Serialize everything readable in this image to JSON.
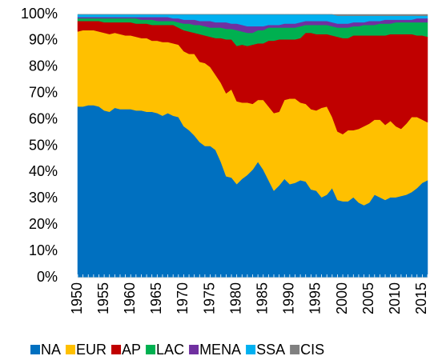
{
  "chart_data": {
    "type": "stacked-area",
    "x": [
      1950,
      1951,
      1952,
      1953,
      1954,
      1955,
      1956,
      1957,
      1958,
      1959,
      1960,
      1961,
      1962,
      1963,
      1964,
      1965,
      1966,
      1967,
      1968,
      1969,
      1970,
      1971,
      1972,
      1973,
      1974,
      1975,
      1976,
      1977,
      1978,
      1979,
      1980,
      1981,
      1982,
      1983,
      1984,
      1985,
      1986,
      1987,
      1988,
      1989,
      1990,
      1991,
      1992,
      1993,
      1994,
      1995,
      1996,
      1997,
      1998,
      1999,
      2000,
      2001,
      2002,
      2003,
      2004,
      2005,
      2006,
      2007,
      2008,
      2009,
      2010,
      2011,
      2012,
      2013,
      2014,
      2015,
      2016
    ],
    "xlim": [
      1950,
      2016
    ],
    "xticks": [
      1950,
      1955,
      1960,
      1965,
      1970,
      1975,
      1980,
      1985,
      1990,
      1995,
      2000,
      2005,
      2010,
      2015
    ],
    "ylim": [
      0,
      100
    ],
    "yticks": [
      {
        "value": 0,
        "label": "0%"
      },
      {
        "value": 10,
        "label": "10%"
      },
      {
        "value": 20,
        "label": "20%"
      },
      {
        "value": 30,
        "label": "30%"
      },
      {
        "value": 40,
        "label": "40%"
      },
      {
        "value": 50,
        "label": "50%"
      },
      {
        "value": 60,
        "label": "60%"
      },
      {
        "value": 70,
        "label": "70%"
      },
      {
        "value": 80,
        "label": "80%"
      },
      {
        "value": 90,
        "label": "90%"
      },
      {
        "value": 100,
        "label": "100%"
      }
    ],
    "legend": "bottom",
    "series": [
      {
        "name": "NA",
        "color": "#0070c0",
        "values": [
          65,
          65,
          65.5,
          65.5,
          65,
          63.5,
          63,
          64.5,
          64,
          64,
          64,
          63.5,
          63.5,
          63,
          63,
          62.5,
          61.5,
          62.5,
          61.5,
          61,
          57.5,
          56,
          54,
          51.5,
          50,
          50,
          48.5,
          44,
          38.5,
          38,
          35.5,
          37.5,
          39,
          41,
          44,
          41,
          37,
          33,
          35,
          37.5,
          35.5,
          36,
          37,
          36.5,
          33.5,
          33,
          30.5,
          31.5,
          34,
          29.5,
          29,
          29,
          30.5,
          28.5,
          27.5,
          28.5,
          31.5,
          30.5,
          29.5,
          30.5,
          30.5,
          31,
          31.5,
          32.5,
          34,
          36,
          37
        ]
      },
      {
        "name": "EUR",
        "color": "#ffc000",
        "values": [
          28.5,
          29,
          28.5,
          28.5,
          28.5,
          29.5,
          29.5,
          28.5,
          28.5,
          28,
          28,
          28,
          27.5,
          28,
          27,
          27.5,
          28,
          27,
          27.5,
          27.5,
          28.5,
          29,
          31,
          30.5,
          31.5,
          30,
          28.5,
          30,
          31.5,
          33.5,
          31.5,
          29,
          27.5,
          25,
          23.5,
          26.5,
          28,
          29.5,
          28,
          30,
          32.5,
          32,
          29.5,
          29.5,
          30.5,
          30.5,
          34,
          33.5,
          27,
          26,
          25.5,
          27,
          25.5,
          28,
          30,
          30,
          28.5,
          29.5,
          28.5,
          29,
          27,
          25.5,
          27,
          28.5,
          27,
          24,
          22
        ]
      },
      {
        "name": "AP",
        "color": "#c00000",
        "values": [
          4,
          3.5,
          3.5,
          3.5,
          4,
          4,
          4.5,
          4,
          4.5,
          5,
          5,
          5,
          5.5,
          5.5,
          6,
          6,
          6.5,
          6.5,
          7,
          6.5,
          8,
          8.5,
          8,
          10.5,
          10.5,
          11.5,
          14,
          17,
          20.5,
          19,
          21,
          22,
          21.5,
          22.5,
          21.5,
          21.5,
          25,
          27.5,
          27.5,
          23,
          22.5,
          22.5,
          24.5,
          27,
          29,
          29,
          28,
          27.5,
          31,
          36,
          36.5,
          35,
          36,
          35.5,
          34.5,
          33.5,
          32,
          32,
          34,
          33,
          35,
          36,
          34,
          31.5,
          31,
          32,
          32.5
        ]
      },
      {
        "name": "LAC",
        "color": "#00b050",
        "values": [
          1,
          1,
          1,
          1,
          1,
          1.5,
          1.5,
          1.5,
          1.5,
          1.5,
          1.5,
          2,
          1.5,
          1.5,
          2,
          1.5,
          1.5,
          1.5,
          1.5,
          2,
          2.5,
          3,
          3,
          3.5,
          3.5,
          3.5,
          4,
          4,
          4,
          4,
          6,
          5,
          5,
          4.5,
          5,
          5,
          5,
          5,
          4.5,
          4.5,
          4.5,
          4.5,
          4.5,
          3,
          3,
          3.5,
          3.5,
          3.5,
          3.5,
          3.5,
          4,
          4,
          3.5,
          3.5,
          4,
          4,
          4,
          4.5,
          4.5,
          4,
          4.5,
          4.5,
          4.5,
          4.5,
          5,
          5,
          5.5
        ]
      },
      {
        "name": "MENA",
        "color": "#7030a0",
        "values": [
          0.5,
          0.5,
          0.5,
          0.5,
          0.5,
          0.5,
          0.5,
          0.5,
          0.5,
          0.5,
          0.5,
          0.5,
          1,
          1,
          1,
          1.5,
          1.5,
          1.5,
          1,
          1.5,
          1.5,
          1.5,
          2,
          1.5,
          2,
          2.5,
          2,
          2,
          2.5,
          2,
          2.5,
          2.5,
          2.5,
          2.5,
          1.5,
          1.5,
          1,
          1,
          1,
          1.5,
          1.5,
          1.5,
          1.5,
          1.5,
          1.5,
          1.5,
          1.5,
          1.5,
          1.5,
          1.5,
          1.5,
          1.5,
          1.5,
          1.5,
          1,
          1.5,
          1.5,
          1,
          1.5,
          1.5,
          1,
          1,
          1,
          1,
          1.5,
          1.5,
          1.5
        ]
      },
      {
        "name": "SSA",
        "color": "#00b0f0",
        "values": [
          1,
          1,
          1,
          1,
          1,
          1,
          1,
          1,
          1,
          1,
          1,
          1,
          1,
          1,
          1,
          1,
          1,
          1,
          1.5,
          1.5,
          2,
          2,
          2,
          2.5,
          2.5,
          2.5,
          3,
          3,
          3,
          3.5,
          3.5,
          4,
          4.5,
          4.5,
          4.5,
          4.5,
          4,
          4,
          4,
          3.5,
          3.5,
          3.5,
          3,
          2.5,
          2.5,
          2.5,
          2.5,
          2.5,
          3,
          3,
          3,
          3,
          2.5,
          2.5,
          2.5,
          2,
          2,
          2,
          1.5,
          1.5,
          1.5,
          1.5,
          1.5,
          1.5,
          1,
          1,
          1
        ]
      },
      {
        "name": "CIS",
        "color": "#808080",
        "values": [
          0,
          0,
          0,
          0,
          0,
          0,
          0,
          0,
          0,
          0,
          0,
          0,
          0,
          0,
          0,
          0,
          0,
          0,
          0,
          0,
          0,
          0,
          0,
          0,
          0,
          0,
          0,
          0,
          0,
          0,
          0,
          0,
          0,
          0,
          0,
          0,
          0,
          0,
          0,
          0,
          0,
          0,
          0,
          0,
          0,
          0,
          0,
          0,
          0,
          0.5,
          0.5,
          0.5,
          0.5,
          0.5,
          0.5,
          0.5,
          0.5,
          0.5,
          0.5,
          0.5,
          0.5,
          0.5,
          0.5,
          0.5,
          0.5,
          0.5,
          0.5
        ]
      }
    ]
  }
}
